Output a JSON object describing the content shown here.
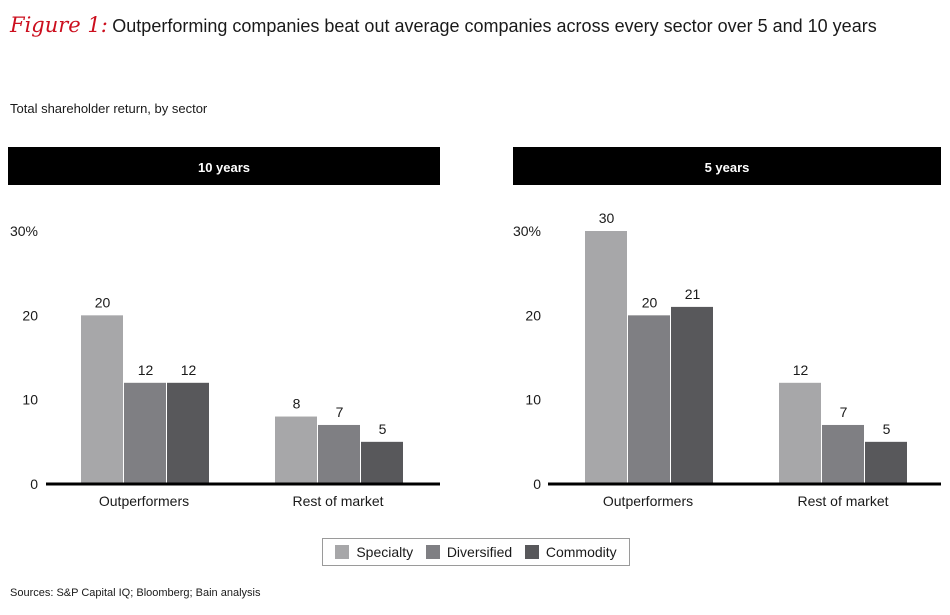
{
  "title": {
    "figure_label": "Figure 1:",
    "text": "Outperforming companies beat out average companies across every sector over 5 and 10 years"
  },
  "subtitle": "Total shareholder return, by sector",
  "source": "Sources: S&P Capital IQ; Bloomberg; Bain analysis",
  "colors": {
    "specialty": "#a7a7a9",
    "diversified": "#7f7f83",
    "commodity": "#58585b",
    "header_bg": "#000000",
    "accent": "#cc0f1e"
  },
  "legend": [
    {
      "key": "specialty",
      "label": "Specialty"
    },
    {
      "key": "diversified",
      "label": "Diversified"
    },
    {
      "key": "commodity",
      "label": "Commodity"
    }
  ],
  "chart_data": [
    {
      "type": "bar",
      "title": "10 years",
      "categories": [
        "Outperformers",
        "Rest of market"
      ],
      "series": [
        {
          "name": "Specialty",
          "values": [
            20,
            8
          ]
        },
        {
          "name": "Diversified",
          "values": [
            12,
            7
          ]
        },
        {
          "name": "Commodity",
          "values": [
            12,
            5
          ]
        }
      ],
      "ylim": [
        0,
        30
      ],
      "yticks": [
        "0",
        "10",
        "20",
        "30%"
      ],
      "ylabel": "Total shareholder return, by sector",
      "legend": "bottom"
    },
    {
      "type": "bar",
      "title": "5 years",
      "categories": [
        "Outperformers",
        "Rest of market"
      ],
      "series": [
        {
          "name": "Specialty",
          "values": [
            30,
            12
          ]
        },
        {
          "name": "Diversified",
          "values": [
            20,
            7
          ]
        },
        {
          "name": "Commodity",
          "values": [
            21,
            5
          ]
        }
      ],
      "ylim": [
        0,
        30
      ],
      "yticks": [
        "0",
        "10",
        "20",
        "30%"
      ],
      "ylabel": "Total shareholder return, by sector",
      "legend": "bottom"
    }
  ]
}
